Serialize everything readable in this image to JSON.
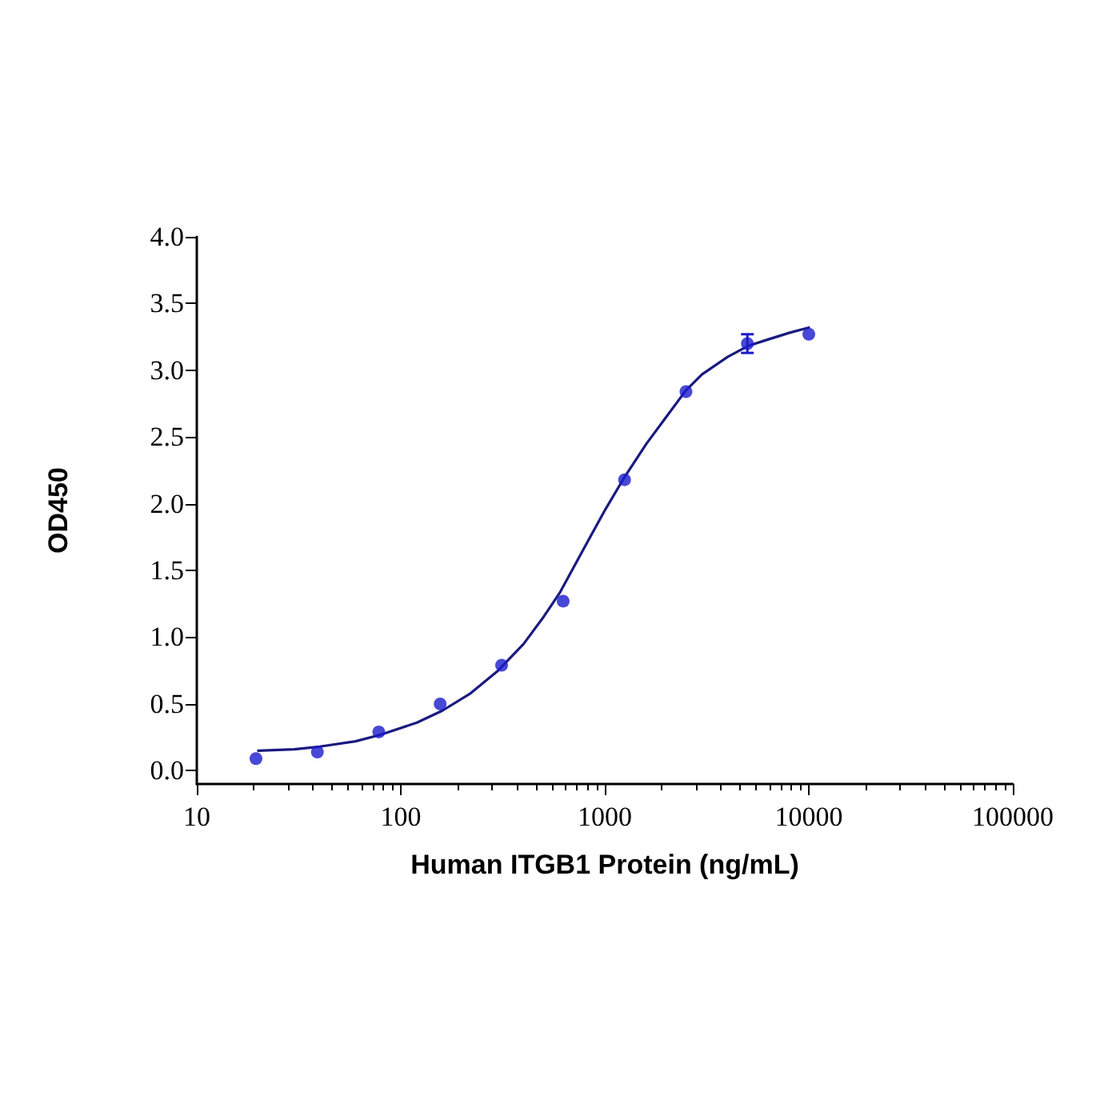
{
  "chart_data": {
    "type": "scatter",
    "xlabel": "Human ITGB1 Protein (ng/mL)",
    "ylabel": "OD450",
    "log": "x",
    "grid": false,
    "xlim": [
      10,
      100000
    ],
    "xticks": [
      10,
      100,
      1000,
      10000,
      100000
    ],
    "ylim": [
      -0.1,
      4.0
    ],
    "yticks": [
      {
        "value": 0,
        "label": "0.0"
      },
      {
        "value": 0.5,
        "label": "0.5"
      },
      {
        "value": 1,
        "label": "1.0"
      },
      {
        "value": 1.5,
        "label": "1.5"
      },
      {
        "value": 2,
        "label": "2.0"
      },
      {
        "value": 2.5,
        "label": "2.5"
      },
      {
        "value": 3,
        "label": "3.0"
      },
      {
        "value": 3.5,
        "label": "3.5"
      },
      {
        "value": 4,
        "label": "4.0"
      }
    ],
    "series": [
      {
        "color": "#1a1acc",
        "marker": "circle",
        "x": [
          19.5,
          39,
          78,
          156,
          312,
          625,
          1250,
          2500,
          5000,
          10000
        ],
        "values": [
          0.09,
          0.14,
          0.29,
          0.5,
          0.79,
          1.27,
          2.18,
          2.84,
          3.2,
          3.27
        ],
        "errors": [
          null,
          null,
          null,
          null,
          null,
          null,
          null,
          null,
          0.07,
          null
        ]
      },
      {
        "type": "line",
        "color": "#1a1a80",
        "marker": "none",
        "line_style": "solid",
        "x": [
          20,
          30,
          40,
          60,
          80,
          120,
          160,
          220,
          300,
          400,
          500,
          600,
          800,
          1000,
          1250,
          1600,
          2000,
          2500,
          3000,
          4000,
          5000,
          6000,
          8000,
          10000
        ],
        "values": [
          0.15,
          0.16,
          0.18,
          0.22,
          0.27,
          0.36,
          0.45,
          0.58,
          0.75,
          0.95,
          1.15,
          1.33,
          1.68,
          1.95,
          2.2,
          2.45,
          2.65,
          2.85,
          2.97,
          3.1,
          3.18,
          3.22,
          3.28,
          3.32
        ]
      }
    ]
  }
}
